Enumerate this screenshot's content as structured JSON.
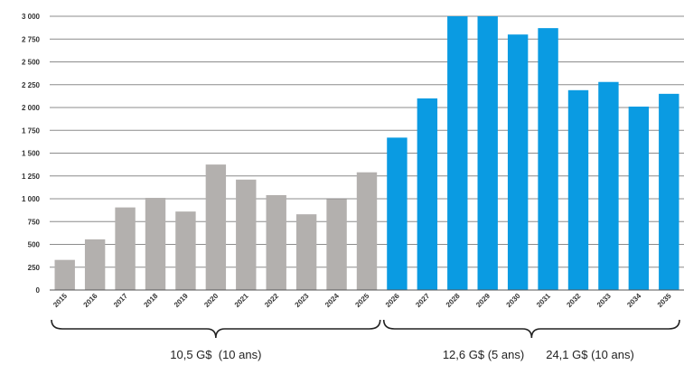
{
  "chart_data": {
    "type": "bar",
    "title": "",
    "xlabel": "",
    "ylabel": "",
    "ylim": [
      0,
      3000
    ],
    "yticks": [
      0,
      250,
      500,
      750,
      1000,
      1250,
      1500,
      1750,
      2000,
      2250,
      2500,
      2750,
      3000
    ],
    "ytick_labels": [
      "0",
      "250",
      "500",
      "750",
      "1 000",
      "1 250",
      "1 500",
      "1 750",
      "2 000",
      "2 250",
      "2 500",
      "2 750",
      "3 000"
    ],
    "grid": true,
    "categories": [
      "2015",
      "2016",
      "2017",
      "2018",
      "2019",
      "2020",
      "2021",
      "2022",
      "2023",
      "2024",
      "2025",
      "2026",
      "2027",
      "2028",
      "2029",
      "2030",
      "2031",
      "2032",
      "2033",
      "2034",
      "2035"
    ],
    "values": [
      330,
      555,
      905,
      1010,
      860,
      1375,
      1210,
      1040,
      830,
      995,
      1290,
      1670,
      2100,
      3000,
      3000,
      2800,
      2870,
      2190,
      2280,
      2010,
      2150
    ],
    "colors": {
      "historical": "#b3b0ae",
      "projected": "#0a9be2"
    },
    "projected_from": "2026",
    "annotations": [
      {
        "label": "10,5 G$  (10 ans)",
        "from": "2015",
        "to": "2025"
      },
      {
        "label": "12,6 G$ (5 ans)",
        "from": "2026",
        "to": "2035"
      },
      {
        "label": "24,1 G$ (10 ans)",
        "from": "2026",
        "to": "2035"
      }
    ]
  }
}
